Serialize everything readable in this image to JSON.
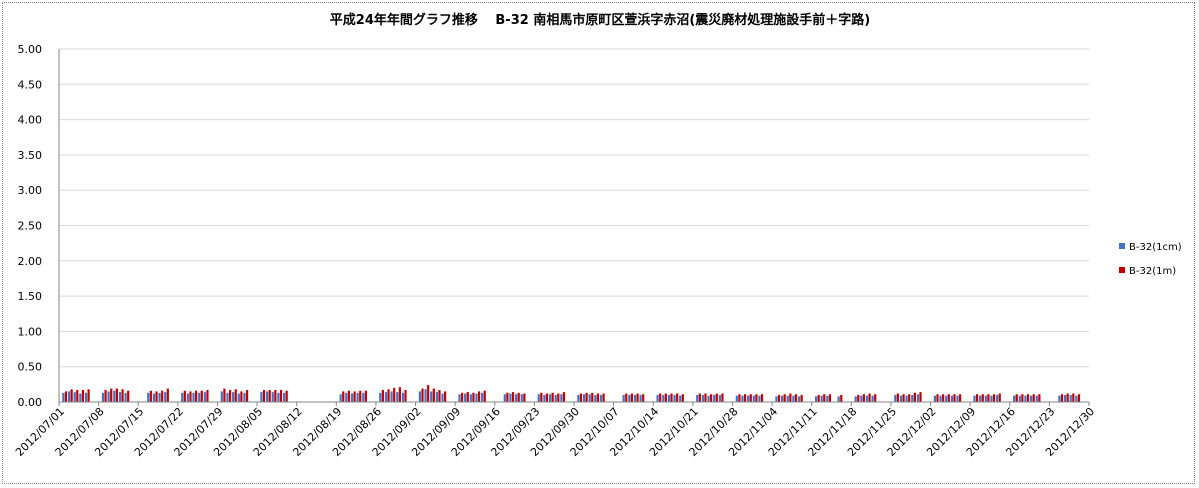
{
  "chart_data": {
    "type": "bar",
    "title": "平成24年年間グラフ推移　 B-32 南相馬市原町区萱浜字赤沼(震災廃材処理施設手前＋字路)",
    "xlabel": "",
    "ylabel": "",
    "ylim": [
      0,
      5
    ],
    "yticks": [
      "5.00",
      "4.50",
      "4.00",
      "3.50",
      "3.00",
      "2.50",
      "2.00",
      "1.50",
      "1.00",
      "0.50",
      "0.00"
    ],
    "grid": "y-major",
    "legend_position": "right",
    "x_start": "2012/07/01",
    "x_end": "2012/12/30",
    "xticks": [
      "2012/07/01",
      "2012/07/08",
      "2012/07/15",
      "2012/07/22",
      "2012/07/29",
      "2012/08/05",
      "2012/08/12",
      "2012/08/19",
      "2012/08/26",
      "2012/09/02",
      "2012/09/09",
      "2012/09/16",
      "2012/09/23",
      "2012/09/30",
      "2012/10/07",
      "2012/10/14",
      "2012/10/21",
      "2012/10/28",
      "2012/11/04",
      "2012/11/11",
      "2012/11/18",
      "2012/11/25",
      "2012/12/02",
      "2012/12/09",
      "2012/12/16",
      "2012/12/23",
      "2012/12/30"
    ],
    "series": [
      {
        "name": "B-32(1cm)",
        "color": "#4472C4",
        "values": [
          {
            "x": "2012/07/02",
            "y": 0.13
          },
          {
            "x": "2012/07/03",
            "y": 0.15
          },
          {
            "x": "2012/07/04",
            "y": 0.14
          },
          {
            "x": "2012/07/05",
            "y": 0.12
          },
          {
            "x": "2012/07/06",
            "y": 0.13
          },
          {
            "x": "2012/07/09",
            "y": 0.13
          },
          {
            "x": "2012/07/10",
            "y": 0.15
          },
          {
            "x": "2012/07/11",
            "y": 0.16
          },
          {
            "x": "2012/07/12",
            "y": 0.14
          },
          {
            "x": "2012/07/13",
            "y": 0.13
          },
          {
            "x": "2012/07/17",
            "y": 0.13
          },
          {
            "x": "2012/07/18",
            "y": 0.12
          },
          {
            "x": "2012/07/19",
            "y": 0.13
          },
          {
            "x": "2012/07/20",
            "y": 0.14
          },
          {
            "x": "2012/07/23",
            "y": 0.13
          },
          {
            "x": "2012/07/24",
            "y": 0.12
          },
          {
            "x": "2012/07/25",
            "y": 0.13
          },
          {
            "x": "2012/07/26",
            "y": 0.13
          },
          {
            "x": "2012/07/27",
            "y": 0.14
          },
          {
            "x": "2012/07/30",
            "y": 0.15
          },
          {
            "x": "2012/07/31",
            "y": 0.13
          },
          {
            "x": "2012/08/01",
            "y": 0.14
          },
          {
            "x": "2012/08/02",
            "y": 0.12
          },
          {
            "x": "2012/08/03",
            "y": 0.13
          },
          {
            "x": "2012/08/06",
            "y": 0.14
          },
          {
            "x": "2012/08/07",
            "y": 0.15
          },
          {
            "x": "2012/08/08",
            "y": 0.14
          },
          {
            "x": "2012/08/09",
            "y": 0.13
          },
          {
            "x": "2012/08/10",
            "y": 0.13
          },
          {
            "x": "2012/08/20",
            "y": 0.11
          },
          {
            "x": "2012/08/21",
            "y": 0.13
          },
          {
            "x": "2012/08/22",
            "y": 0.12
          },
          {
            "x": "2012/08/23",
            "y": 0.13
          },
          {
            "x": "2012/08/24",
            "y": 0.13
          },
          {
            "x": "2012/08/27",
            "y": 0.13
          },
          {
            "x": "2012/08/28",
            "y": 0.14
          },
          {
            "x": "2012/08/29",
            "y": 0.15
          },
          {
            "x": "2012/08/30",
            "y": 0.14
          },
          {
            "x": "2012/08/31",
            "y": 0.13
          },
          {
            "x": "2012/09/03",
            "y": 0.15
          },
          {
            "x": "2012/09/04",
            "y": 0.18
          },
          {
            "x": "2012/09/05",
            "y": 0.15
          },
          {
            "x": "2012/09/06",
            "y": 0.14
          },
          {
            "x": "2012/09/07",
            "y": 0.12
          },
          {
            "x": "2012/09/10",
            "y": 0.11
          },
          {
            "x": "2012/09/11",
            "y": 0.12
          },
          {
            "x": "2012/09/12",
            "y": 0.11
          },
          {
            "x": "2012/09/13",
            "y": 0.12
          },
          {
            "x": "2012/09/14",
            "y": 0.13
          },
          {
            "x": "2012/09/18",
            "y": 0.11
          },
          {
            "x": "2012/09/19",
            "y": 0.12
          },
          {
            "x": "2012/09/20",
            "y": 0.11
          },
          {
            "x": "2012/09/21",
            "y": 0.11
          },
          {
            "x": "2012/09/24",
            "y": 0.11
          },
          {
            "x": "2012/09/25",
            "y": 0.1
          },
          {
            "x": "2012/09/26",
            "y": 0.11
          },
          {
            "x": "2012/09/27",
            "y": 0.1
          },
          {
            "x": "2012/09/28",
            "y": 0.11
          },
          {
            "x": "2012/10/01",
            "y": 0.1
          },
          {
            "x": "2012/10/02",
            "y": 0.11
          },
          {
            "x": "2012/10/03",
            "y": 0.11
          },
          {
            "x": "2012/10/04",
            "y": 0.1
          },
          {
            "x": "2012/10/05",
            "y": 0.1
          },
          {
            "x": "2012/10/09",
            "y": 0.1
          },
          {
            "x": "2012/10/10",
            "y": 0.1
          },
          {
            "x": "2012/10/11",
            "y": 0.1
          },
          {
            "x": "2012/10/12",
            "y": 0.1
          },
          {
            "x": "2012/10/15",
            "y": 0.1
          },
          {
            "x": "2012/10/16",
            "y": 0.1
          },
          {
            "x": "2012/10/17",
            "y": 0.1
          },
          {
            "x": "2012/10/18",
            "y": 0.1
          },
          {
            "x": "2012/10/19",
            "y": 0.09
          },
          {
            "x": "2012/10/22",
            "y": 0.1
          },
          {
            "x": "2012/10/23",
            "y": 0.1
          },
          {
            "x": "2012/10/24",
            "y": 0.09
          },
          {
            "x": "2012/10/25",
            "y": 0.1
          },
          {
            "x": "2012/10/26",
            "y": 0.1
          },
          {
            "x": "2012/10/29",
            "y": 0.09
          },
          {
            "x": "2012/10/30",
            "y": 0.09
          },
          {
            "x": "2012/10/31",
            "y": 0.09
          },
          {
            "x": "2012/11/01",
            "y": 0.09
          },
          {
            "x": "2012/11/02",
            "y": 0.09
          },
          {
            "x": "2012/11/05",
            "y": 0.08
          },
          {
            "x": "2012/11/06",
            "y": 0.09
          },
          {
            "x": "2012/11/07",
            "y": 0.09
          },
          {
            "x": "2012/11/08",
            "y": 0.09
          },
          {
            "x": "2012/11/09",
            "y": 0.08
          },
          {
            "x": "2012/11/12",
            "y": 0.08
          },
          {
            "x": "2012/11/13",
            "y": 0.09
          },
          {
            "x": "2012/11/14",
            "y": 0.09
          },
          {
            "x": "2012/11/16",
            "y": 0.08
          },
          {
            "x": "2012/11/19",
            "y": 0.08
          },
          {
            "x": "2012/11/20",
            "y": 0.09
          },
          {
            "x": "2012/11/21",
            "y": 0.09
          },
          {
            "x": "2012/11/22",
            "y": 0.09
          },
          {
            "x": "2012/11/26",
            "y": 0.1
          },
          {
            "x": "2012/11/27",
            "y": 0.09
          },
          {
            "x": "2012/11/28",
            "y": 0.09
          },
          {
            "x": "2012/11/29",
            "y": 0.1
          },
          {
            "x": "2012/11/30",
            "y": 0.11
          },
          {
            "x": "2012/12/03",
            "y": 0.09
          },
          {
            "x": "2012/12/04",
            "y": 0.09
          },
          {
            "x": "2012/12/05",
            "y": 0.09
          },
          {
            "x": "2012/12/06",
            "y": 0.09
          },
          {
            "x": "2012/12/07",
            "y": 0.09
          },
          {
            "x": "2012/12/10",
            "y": 0.09
          },
          {
            "x": "2012/12/11",
            "y": 0.09
          },
          {
            "x": "2012/12/12",
            "y": 0.09
          },
          {
            "x": "2012/12/13",
            "y": 0.09
          },
          {
            "x": "2012/12/14",
            "y": 0.1
          },
          {
            "x": "2012/12/17",
            "y": 0.09
          },
          {
            "x": "2012/12/18",
            "y": 0.09
          },
          {
            "x": "2012/12/19",
            "y": 0.09
          },
          {
            "x": "2012/12/20",
            "y": 0.09
          },
          {
            "x": "2012/12/21",
            "y": 0.09
          },
          {
            "x": "2012/12/25",
            "y": 0.09
          },
          {
            "x": "2012/12/26",
            "y": 0.1
          },
          {
            "x": "2012/12/27",
            "y": 0.1
          },
          {
            "x": "2012/12/28",
            "y": 0.09
          }
        ]
      },
      {
        "name": "B-32(1m)",
        "color": "#C00000",
        "values": [
          {
            "x": "2012/07/02",
            "y": 0.15
          },
          {
            "x": "2012/07/03",
            "y": 0.18
          },
          {
            "x": "2012/07/04",
            "y": 0.17
          },
          {
            "x": "2012/07/05",
            "y": 0.17
          },
          {
            "x": "2012/07/06",
            "y": 0.18
          },
          {
            "x": "2012/07/09",
            "y": 0.17
          },
          {
            "x": "2012/07/10",
            "y": 0.19
          },
          {
            "x": "2012/07/11",
            "y": 0.19
          },
          {
            "x": "2012/07/12",
            "y": 0.18
          },
          {
            "x": "2012/07/13",
            "y": 0.16
          },
          {
            "x": "2012/07/17",
            "y": 0.16
          },
          {
            "x": "2012/07/18",
            "y": 0.15
          },
          {
            "x": "2012/07/19",
            "y": 0.16
          },
          {
            "x": "2012/07/20",
            "y": 0.19
          },
          {
            "x": "2012/07/23",
            "y": 0.16
          },
          {
            "x": "2012/07/24",
            "y": 0.15
          },
          {
            "x": "2012/07/25",
            "y": 0.16
          },
          {
            "x": "2012/07/26",
            "y": 0.16
          },
          {
            "x": "2012/07/27",
            "y": 0.17
          },
          {
            "x": "2012/07/30",
            "y": 0.19
          },
          {
            "x": "2012/07/31",
            "y": 0.17
          },
          {
            "x": "2012/08/01",
            "y": 0.18
          },
          {
            "x": "2012/08/02",
            "y": 0.15
          },
          {
            "x": "2012/08/03",
            "y": 0.17
          },
          {
            "x": "2012/08/06",
            "y": 0.17
          },
          {
            "x": "2012/08/07",
            "y": 0.17
          },
          {
            "x": "2012/08/08",
            "y": 0.17
          },
          {
            "x": "2012/08/09",
            "y": 0.17
          },
          {
            "x": "2012/08/10",
            "y": 0.16
          },
          {
            "x": "2012/08/20",
            "y": 0.15
          },
          {
            "x": "2012/08/21",
            "y": 0.16
          },
          {
            "x": "2012/08/22",
            "y": 0.15
          },
          {
            "x": "2012/08/23",
            "y": 0.16
          },
          {
            "x": "2012/08/24",
            "y": 0.16
          },
          {
            "x": "2012/08/27",
            "y": 0.17
          },
          {
            "x": "2012/08/28",
            "y": 0.18
          },
          {
            "x": "2012/08/29",
            "y": 0.2
          },
          {
            "x": "2012/08/30",
            "y": 0.21
          },
          {
            "x": "2012/08/31",
            "y": 0.17
          },
          {
            "x": "2012/09/03",
            "y": 0.19
          },
          {
            "x": "2012/09/04",
            "y": 0.24
          },
          {
            "x": "2012/09/05",
            "y": 0.19
          },
          {
            "x": "2012/09/06",
            "y": 0.17
          },
          {
            "x": "2012/09/07",
            "y": 0.15
          },
          {
            "x": "2012/09/10",
            "y": 0.13
          },
          {
            "x": "2012/09/11",
            "y": 0.14
          },
          {
            "x": "2012/09/12",
            "y": 0.13
          },
          {
            "x": "2012/09/13",
            "y": 0.15
          },
          {
            "x": "2012/09/14",
            "y": 0.16
          },
          {
            "x": "2012/09/18",
            "y": 0.13
          },
          {
            "x": "2012/09/19",
            "y": 0.14
          },
          {
            "x": "2012/09/20",
            "y": 0.13
          },
          {
            "x": "2012/09/21",
            "y": 0.12
          },
          {
            "x": "2012/09/24",
            "y": 0.13
          },
          {
            "x": "2012/09/25",
            "y": 0.12
          },
          {
            "x": "2012/09/26",
            "y": 0.13
          },
          {
            "x": "2012/09/27",
            "y": 0.12
          },
          {
            "x": "2012/09/28",
            "y": 0.14
          },
          {
            "x": "2012/10/01",
            "y": 0.12
          },
          {
            "x": "2012/10/02",
            "y": 0.13
          },
          {
            "x": "2012/10/03",
            "y": 0.13
          },
          {
            "x": "2012/10/04",
            "y": 0.12
          },
          {
            "x": "2012/10/05",
            "y": 0.12
          },
          {
            "x": "2012/10/09",
            "y": 0.12
          },
          {
            "x": "2012/10/10",
            "y": 0.12
          },
          {
            "x": "2012/10/11",
            "y": 0.12
          },
          {
            "x": "2012/10/12",
            "y": 0.11
          },
          {
            "x": "2012/10/15",
            "y": 0.12
          },
          {
            "x": "2012/10/16",
            "y": 0.12
          },
          {
            "x": "2012/10/17",
            "y": 0.12
          },
          {
            "x": "2012/10/18",
            "y": 0.12
          },
          {
            "x": "2012/10/19",
            "y": 0.11
          },
          {
            "x": "2012/10/22",
            "y": 0.12
          },
          {
            "x": "2012/10/23",
            "y": 0.12
          },
          {
            "x": "2012/10/24",
            "y": 0.11
          },
          {
            "x": "2012/10/25",
            "y": 0.12
          },
          {
            "x": "2012/10/26",
            "y": 0.12
          },
          {
            "x": "2012/10/29",
            "y": 0.11
          },
          {
            "x": "2012/10/30",
            "y": 0.11
          },
          {
            "x": "2012/10/31",
            "y": 0.11
          },
          {
            "x": "2012/11/01",
            "y": 0.11
          },
          {
            "x": "2012/11/02",
            "y": 0.11
          },
          {
            "x": "2012/11/05",
            "y": 0.1
          },
          {
            "x": "2012/11/06",
            "y": 0.11
          },
          {
            "x": "2012/11/07",
            "y": 0.12
          },
          {
            "x": "2012/11/08",
            "y": 0.11
          },
          {
            "x": "2012/11/09",
            "y": 0.1
          },
          {
            "x": "2012/11/12",
            "y": 0.1
          },
          {
            "x": "2012/11/13",
            "y": 0.11
          },
          {
            "x": "2012/11/14",
            "y": 0.11
          },
          {
            "x": "2012/11/16",
            "y": 0.1
          },
          {
            "x": "2012/11/19",
            "y": 0.1
          },
          {
            "x": "2012/11/20",
            "y": 0.11
          },
          {
            "x": "2012/11/21",
            "y": 0.12
          },
          {
            "x": "2012/11/22",
            "y": 0.11
          },
          {
            "x": "2012/11/26",
            "y": 0.12
          },
          {
            "x": "2012/11/27",
            "y": 0.11
          },
          {
            "x": "2012/11/28",
            "y": 0.11
          },
          {
            "x": "2012/11/29",
            "y": 0.13
          },
          {
            "x": "2012/11/30",
            "y": 0.14
          },
          {
            "x": "2012/12/03",
            "y": 0.11
          },
          {
            "x": "2012/12/04",
            "y": 0.11
          },
          {
            "x": "2012/12/05",
            "y": 0.11
          },
          {
            "x": "2012/12/06",
            "y": 0.11
          },
          {
            "x": "2012/12/07",
            "y": 0.11
          },
          {
            "x": "2012/12/10",
            "y": 0.11
          },
          {
            "x": "2012/12/11",
            "y": 0.11
          },
          {
            "x": "2012/12/12",
            "y": 0.11
          },
          {
            "x": "2012/12/13",
            "y": 0.11
          },
          {
            "x": "2012/12/14",
            "y": 0.12
          },
          {
            "x": "2012/12/17",
            "y": 0.11
          },
          {
            "x": "2012/12/18",
            "y": 0.11
          },
          {
            "x": "2012/12/19",
            "y": 0.11
          },
          {
            "x": "2012/12/20",
            "y": 0.11
          },
          {
            "x": "2012/12/21",
            "y": 0.11
          },
          {
            "x": "2012/12/25",
            "y": 0.11
          },
          {
            "x": "2012/12/26",
            "y": 0.12
          },
          {
            "x": "2012/12/27",
            "y": 0.12
          },
          {
            "x": "2012/12/28",
            "y": 0.11
          }
        ]
      }
    ]
  }
}
